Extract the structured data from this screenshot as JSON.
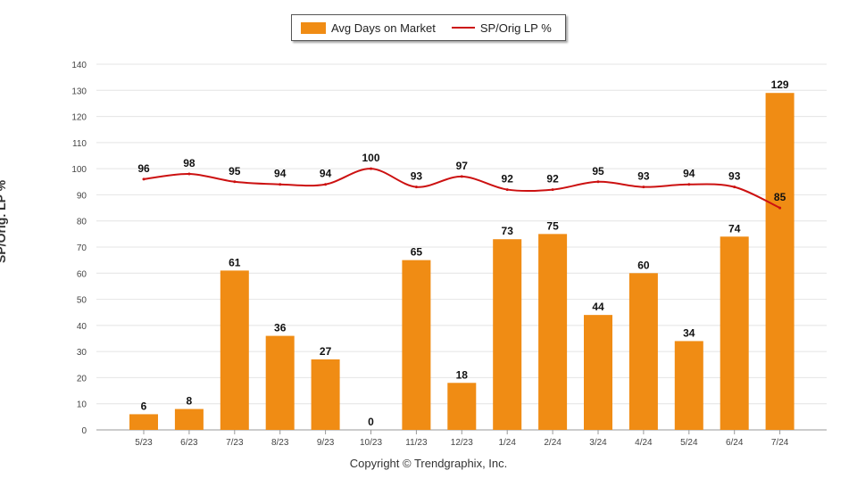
{
  "chart_data": {
    "type": "bar",
    "title": "",
    "categories": [
      "5/23",
      "6/23",
      "7/23",
      "8/23",
      "9/23",
      "10/23",
      "11/23",
      "12/23",
      "1/24",
      "2/24",
      "3/24",
      "4/24",
      "5/24",
      "6/24",
      "7/24"
    ],
    "series": [
      {
        "name": "Avg Days on Market",
        "type": "bar",
        "color": "#F08C14",
        "values": [
          6,
          8,
          61,
          36,
          27,
          0,
          65,
          18,
          73,
          75,
          44,
          60,
          34,
          74,
          129
        ]
      },
      {
        "name": "SP/Orig LP %",
        "type": "line",
        "color": "#CC1111",
        "values": [
          96,
          98,
          95,
          94,
          94,
          100,
          93,
          97,
          92,
          92,
          95,
          93,
          94,
          93,
          85
        ]
      }
    ],
    "ylabel": "SP/Orig. LP %",
    "xlabel": "",
    "ylim": [
      0,
      140
    ],
    "yticks": [
      0,
      10,
      20,
      30,
      40,
      50,
      60,
      70,
      80,
      90,
      100,
      110,
      120,
      130,
      140
    ],
    "grid": true,
    "legend_position": "top-center"
  },
  "copyright": "Copyright © Trendgraphix, Inc."
}
